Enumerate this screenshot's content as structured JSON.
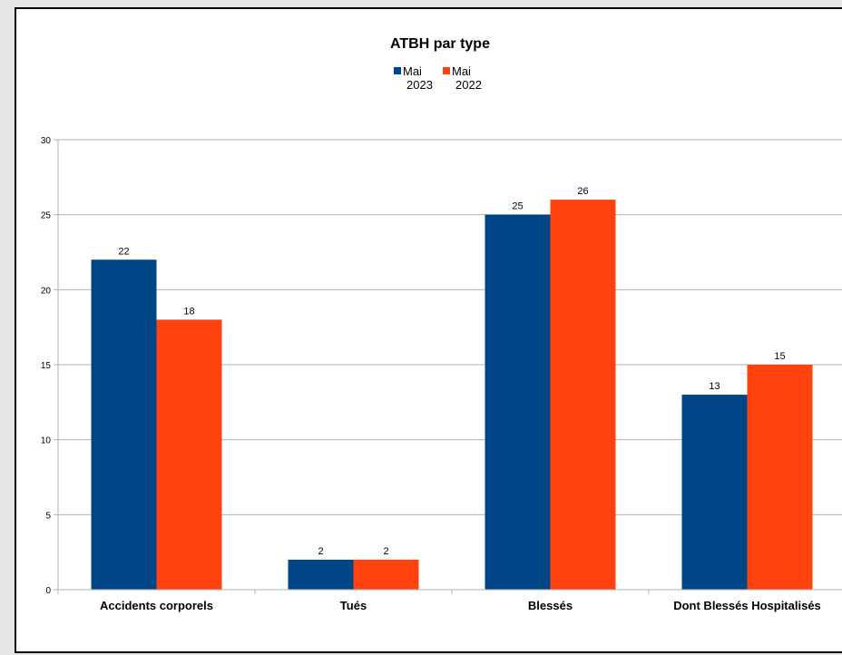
{
  "chart_data": {
    "type": "bar",
    "title": "ATBH par type",
    "categories": [
      "Accidents corporels",
      "Tués",
      "Blessés",
      "Dont Blessés Hospitalisés"
    ],
    "series": [
      {
        "name_lines": [
          "Mai",
          "2023"
        ],
        "name": "Mai 2023",
        "values": [
          22,
          2,
          25,
          13
        ],
        "color": "#004586"
      },
      {
        "name_lines": [
          "Mai",
          "2022"
        ],
        "name": "Mai 2022",
        "values": [
          18,
          2,
          26,
          15
        ],
        "color": "#ff420e"
      }
    ],
    "ylim": [
      0,
      30
    ],
    "yticks": [
      0,
      5,
      10,
      15,
      20,
      25,
      30
    ],
    "xlabel": "",
    "ylabel": "",
    "grid": true,
    "legend_position": "top-center",
    "data_labels": true
  }
}
